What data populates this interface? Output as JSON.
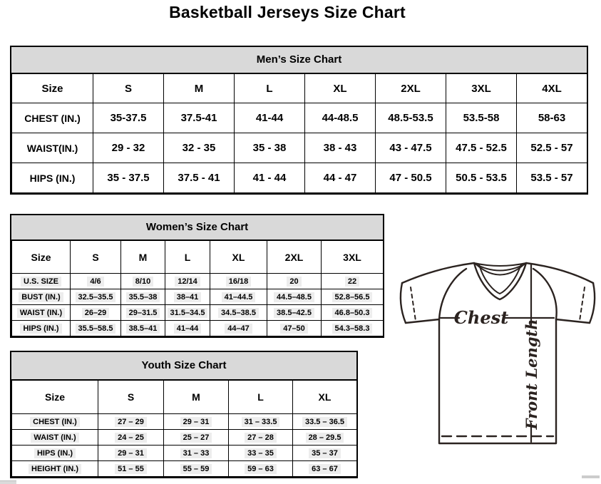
{
  "page": {
    "title": "Basketball Jerseys Size Chart"
  },
  "mens": {
    "title": "Men’s Size Chart",
    "columns": [
      "Size",
      "S",
      "M",
      "L",
      "XL",
      "2XL",
      "3XL",
      "4XL"
    ],
    "rows": [
      {
        "label": "CHEST (IN.)",
        "values": [
          "35-37.5",
          "37.5-41",
          "41-44",
          "44-48.5",
          "48.5-53.5",
          "53.5-58",
          "58-63"
        ]
      },
      {
        "label": "WAIST(IN.)",
        "values": [
          "29 - 32",
          "32 - 35",
          "35 - 38",
          "38 - 43",
          "43 - 47.5",
          "47.5 - 52.5",
          "52.5 - 57"
        ]
      },
      {
        "label": "HIPS (IN.)",
        "values": [
          "35 - 37.5",
          "37.5 - 41",
          "41 - 44",
          "44 - 47",
          "47 - 50.5",
          "50.5 - 53.5",
          "53.5 - 57"
        ]
      }
    ]
  },
  "womens": {
    "title": "Women’s Size Chart",
    "columns": [
      "Size",
      "S",
      "M",
      "L",
      "XL",
      "2XL",
      "3XL"
    ],
    "rows": [
      {
        "label": "U.S. SIZE",
        "values": [
          "4/6",
          "8/10",
          "12/14",
          "16/18",
          "20",
          "22"
        ]
      },
      {
        "label": "BUST (IN.)",
        "values": [
          "32.5–35.5",
          "35.5–38",
          "38–41",
          "41–44.5",
          "44.5–48.5",
          "52.8–56.5"
        ]
      },
      {
        "label": "WAIST (IN.)",
        "values": [
          "26–29",
          "29–31.5",
          "31.5–34.5",
          "34.5–38.5",
          "38.5–42.5",
          "46.8–50.3"
        ]
      },
      {
        "label": "HIPS (IN.)",
        "values": [
          "35.5–58.5",
          "38.5–41",
          "41–44",
          "44–47",
          "47–50",
          "54.3–58.3"
        ]
      }
    ]
  },
  "youth": {
    "title": "Youth Size Chart",
    "columns": [
      "Size",
      "S",
      "M",
      "L",
      "XL"
    ],
    "rows": [
      {
        "label": "CHEST (IN.)",
        "values": [
          "27 – 29",
          "29 – 31",
          "31 – 33.5",
          "33.5 – 36.5"
        ]
      },
      {
        "label": "WAIST (IN.)",
        "values": [
          "24 – 25",
          "25 – 27",
          "27 – 28",
          "28 – 29.5"
        ]
      },
      {
        "label": "HIPS (IN.)",
        "values": [
          "29 – 31",
          "31 – 33",
          "33 – 35",
          "35 – 37"
        ]
      },
      {
        "label": "HEIGHT (IN.)",
        "values": [
          "51 – 55",
          "55 – 59",
          "59 – 63",
          "63 – 67"
        ]
      }
    ]
  },
  "diagram": {
    "chest_label": "Chest",
    "front_length_label": "Front Length"
  },
  "colors": {
    "table_header_bg": "#d9d9d9",
    "table_border": "#000000",
    "diagram_stroke": "#2b2320",
    "highlight": "#ededed"
  }
}
